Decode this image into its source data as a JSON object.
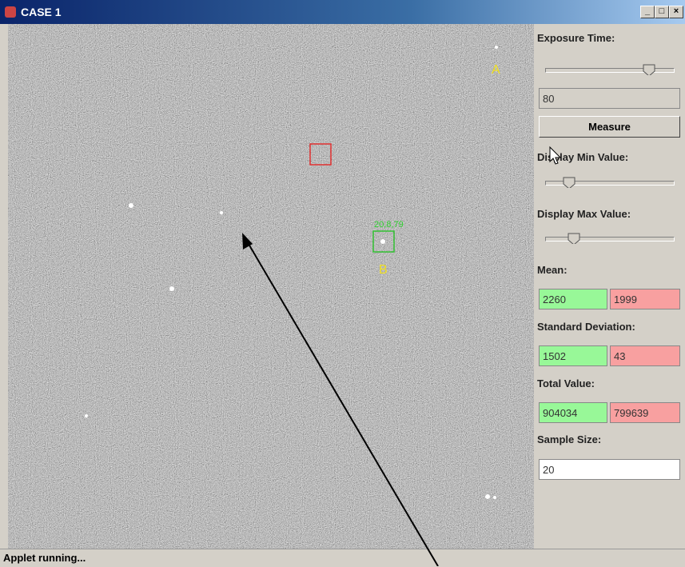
{
  "window": {
    "title": "CASE 1"
  },
  "image": {
    "labels": [
      "A",
      "B"
    ],
    "marker_text": "20,8,79"
  },
  "panel": {
    "exposure_label": "Exposure Time:",
    "exposure_value": "80",
    "measure_button": "Measure",
    "display_min_label": "Display Min Value:",
    "display_max_label": "Display Max Value:",
    "mean_label": "Mean:",
    "mean": [
      "2260",
      "1999"
    ],
    "std_label": "Standard Deviation:",
    "std": [
      "1502",
      "43"
    ],
    "total_label": "Total Value:",
    "total": [
      "904034",
      "799639"
    ],
    "sample_label": "Sample Size:",
    "sample_value": "20"
  },
  "status": "Applet running..."
}
